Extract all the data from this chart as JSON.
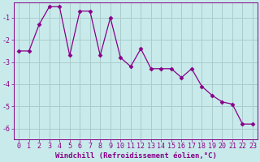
{
  "x": [
    0,
    1,
    2,
    3,
    4,
    5,
    6,
    7,
    8,
    9,
    10,
    11,
    12,
    13,
    14,
    15,
    16,
    17,
    18,
    19,
    20,
    21,
    22,
    23
  ],
  "y": [
    -2.5,
    -2.5,
    -1.3,
    -0.5,
    -0.5,
    -2.7,
    -0.7,
    -0.7,
    -2.7,
    -1.0,
    -2.8,
    -3.2,
    -2.4,
    -3.3,
    -3.3,
    -3.3,
    -3.7,
    -3.3,
    -4.1,
    -4.5,
    -4.8,
    -4.9,
    -5.8,
    -5.8
  ],
  "line_color": "#880088",
  "marker": "D",
  "marker_size": 2.5,
  "bg_color": "#c8eaea",
  "grid_color": "#aacccc",
  "xlabel": "Windchill (Refroidissement éolien,°C)",
  "ylim": [
    -6.5,
    -0.3
  ],
  "xlim": [
    -0.5,
    23.5
  ],
  "yticks": [
    -6,
    -5,
    -4,
    -3,
    -2,
    -1
  ],
  "xticks": [
    0,
    1,
    2,
    3,
    4,
    5,
    6,
    7,
    8,
    9,
    10,
    11,
    12,
    13,
    14,
    15,
    16,
    17,
    18,
    19,
    20,
    21,
    22,
    23
  ],
  "tick_color": "#880088",
  "label_fontsize": 6.5,
  "tick_fontsize": 6.0
}
